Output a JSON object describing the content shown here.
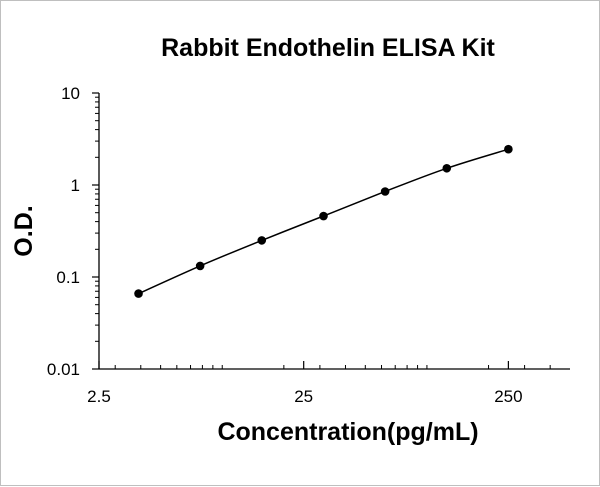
{
  "chart_data": {
    "type": "line",
    "title": "Rabbit Endothelin  ELISA Kit",
    "xlabel": "Concentration(pg/mL)",
    "ylabel": "O.D.",
    "x_scale": "log",
    "y_scale": "log",
    "xlim": [
      2.5,
      500
    ],
    "ylim": [
      0.01,
      10
    ],
    "x_ticks": [
      2.5,
      25,
      250
    ],
    "x_tick_labels": [
      "2.5",
      "25",
      "250"
    ],
    "y_ticks": [
      0.01,
      0.1,
      1,
      10
    ],
    "y_tick_labels": [
      "0.01",
      "0.1",
      "1",
      "10"
    ],
    "grid": false,
    "legend": "none",
    "series": [
      {
        "x": [
          3.9,
          7.8,
          15.6,
          31.25,
          62.5,
          125,
          250
        ],
        "y": [
          0.066,
          0.132,
          0.25,
          0.46,
          0.85,
          1.52,
          2.45
        ]
      }
    ],
    "colors": {
      "line": "#000000",
      "marker": "#000000",
      "axis": "#000000"
    }
  }
}
